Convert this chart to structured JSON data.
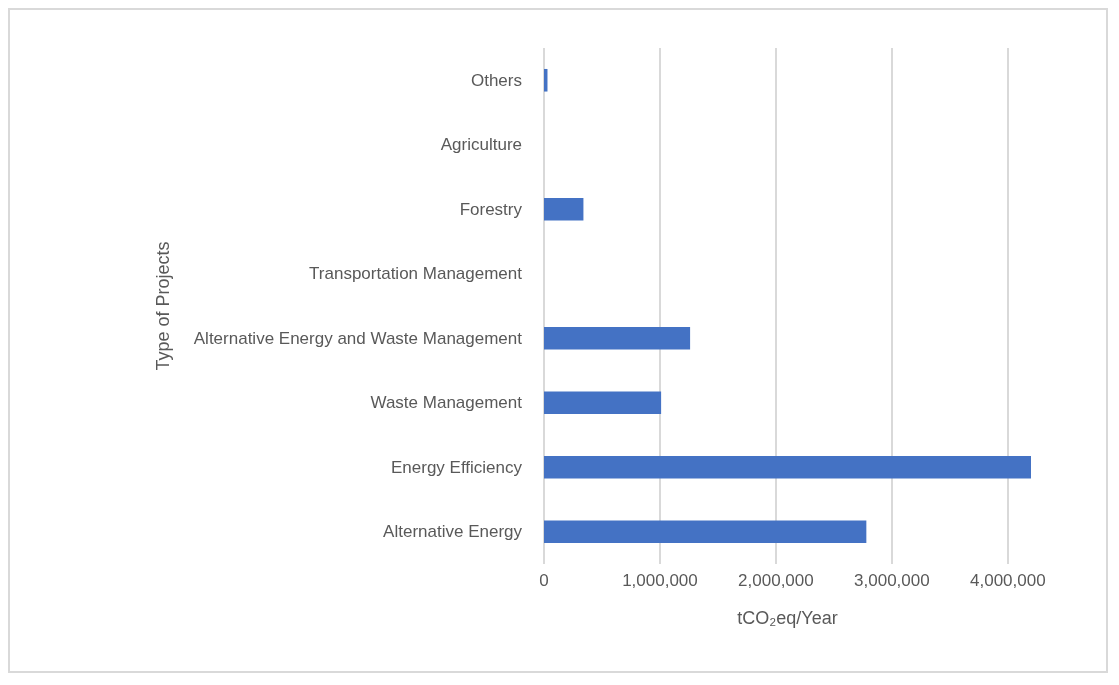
{
  "chart_data": {
    "type": "bar",
    "orientation": "horizontal",
    "xlabel": "tCO₂eq/Year",
    "ylabel": "Type of Projects",
    "categories": [
      "Others",
      "Agriculture",
      "Forestry",
      "Transportation Management",
      "Alternative Energy and Waste Management",
      "Waste Management",
      "Energy Efficiency",
      "Alternative Energy"
    ],
    "values": [
      30000,
      0,
      340000,
      0,
      1260000,
      1010000,
      4200000,
      2780000
    ],
    "color": "#4472c4",
    "xlim": [
      0,
      4200000
    ],
    "xticks": [
      0,
      {
        "value": 1000000,
        "label": "1,000,000"
      },
      {
        "value": 2000000,
        "label": "2,000,000"
      },
      {
        "value": 3000000,
        "label": "3,000,000"
      },
      {
        "value": 4000000,
        "label": "4,000,000"
      }
    ],
    "grid": "x"
  }
}
